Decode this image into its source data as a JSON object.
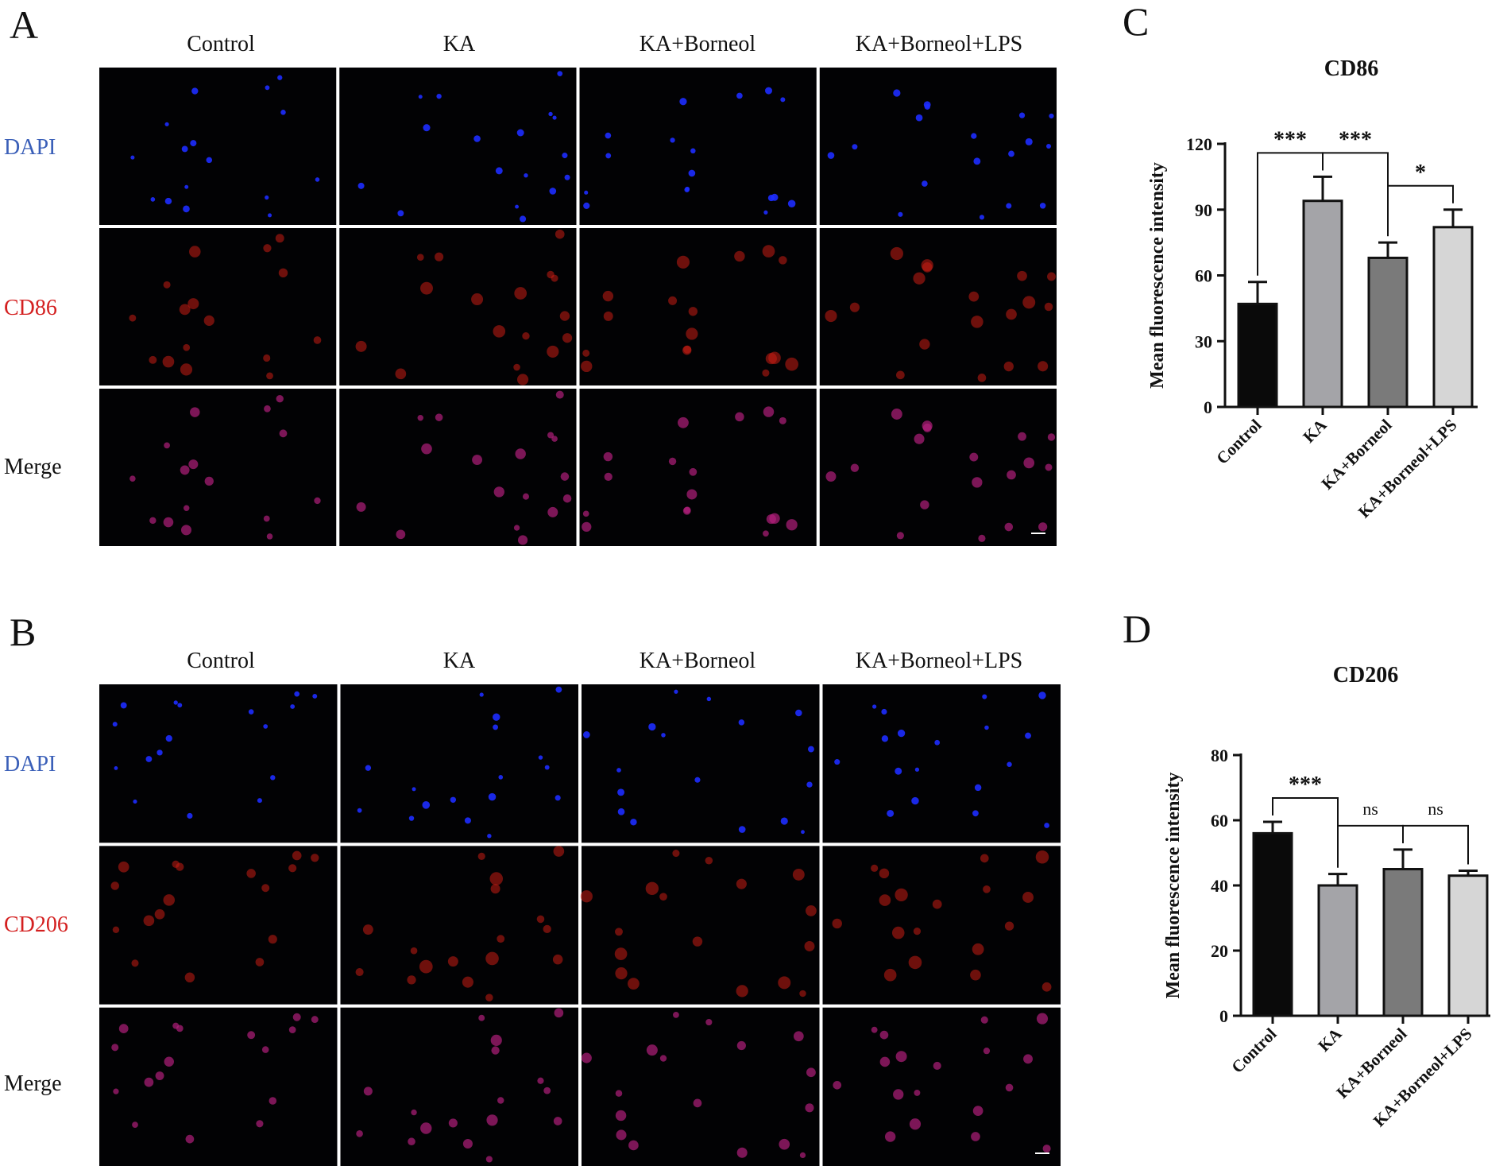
{
  "panels": {
    "A": {
      "letter": "A",
      "columns": [
        "Control",
        "KA",
        "KA+Borneol",
        "KA+Borneol+LPS"
      ],
      "rows": [
        "DAPI",
        "CD86",
        "Merge"
      ]
    },
    "B": {
      "letter": "B",
      "columns": [
        "Control",
        "KA",
        "KA+Borneol",
        "KA+Borneol+LPS"
      ],
      "rows": [
        "DAPI",
        "CD206",
        "Merge"
      ]
    },
    "C": {
      "letter": "C"
    },
    "D": {
      "letter": "D"
    }
  },
  "colors": {
    "dapi": "#1d2cff",
    "cd86": "#c81e14",
    "merge": "#b0207a",
    "label_blue": "#3a5fb8",
    "label_red": "#d42020",
    "bars": [
      "#0a0a0a",
      "#a4a4a8",
      "#7a7a7a",
      "#d6d6d6"
    ]
  },
  "chart_data": [
    {
      "type": "bar",
      "title": "CD86",
      "ylabel": "Mean fluorescence intensity",
      "xlabel": "",
      "categories": [
        "Control",
        "KA",
        "KA+Borneol",
        "KA+Borneol+LPS"
      ],
      "values": [
        47,
        94,
        68,
        82
      ],
      "errors": [
        10,
        11,
        7,
        8
      ],
      "ylim": [
        0,
        120
      ],
      "yticks": [
        0,
        30,
        60,
        90,
        120
      ],
      "comparisons": [
        {
          "from": 0,
          "to": 1,
          "label": "***"
        },
        {
          "from": 1,
          "to": 2,
          "label": "***"
        },
        {
          "from": 2,
          "to": 3,
          "label": "*"
        }
      ]
    },
    {
      "type": "bar",
      "title": "CD206",
      "ylabel": "Mean fluorescence intensity",
      "xlabel": "",
      "categories": [
        "Control",
        "KA",
        "KA+Borneol",
        "KA+Borneol+LPS"
      ],
      "values": [
        56,
        40,
        45,
        43
      ],
      "errors": [
        3.5,
        3.5,
        6,
        1.5
      ],
      "ylim": [
        0,
        80
      ],
      "yticks": [
        0,
        20,
        40,
        60,
        80
      ],
      "comparisons": [
        {
          "from": 0,
          "to": 1,
          "label": "***"
        },
        {
          "from": 1,
          "to": 2,
          "label": "ns"
        },
        {
          "from": 2,
          "to": 3,
          "label": "ns"
        }
      ]
    }
  ]
}
